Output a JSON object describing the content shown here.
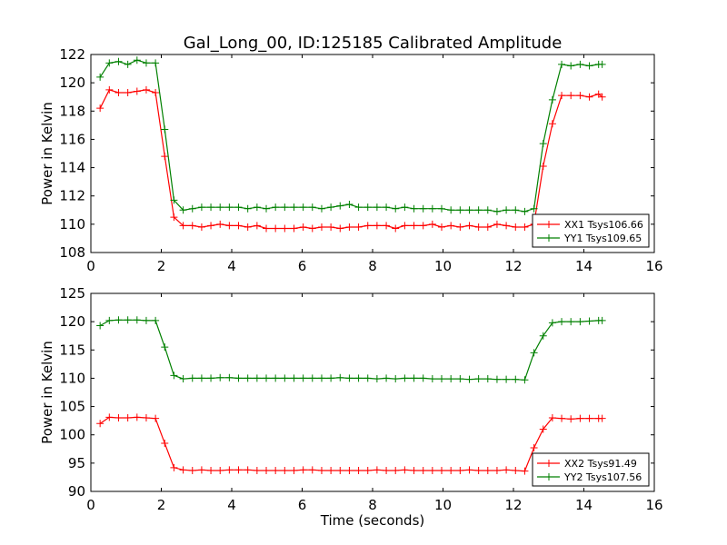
{
  "title": "Gal_Long_00, ID:125185 Calibrated Amplitude",
  "colors": {
    "xx": "#ff0000",
    "yy": "#008000"
  },
  "chart_data": [
    {
      "type": "line",
      "xlabel": "",
      "ylabel": "Power in Kelvin",
      "xlim": [
        0,
        16
      ],
      "ylim": [
        108,
        122
      ],
      "xticks": [
        0,
        2,
        4,
        6,
        8,
        10,
        12,
        14,
        16
      ],
      "yticks": [
        108,
        110,
        112,
        114,
        116,
        118,
        120,
        122
      ],
      "grid": false,
      "legend_position": "lower-right",
      "x": [
        0.262,
        0.524,
        0.786,
        1.049,
        1.311,
        1.573,
        1.835,
        2.097,
        2.359,
        2.621,
        2.884,
        3.146,
        3.408,
        3.67,
        3.932,
        4.194,
        4.456,
        4.719,
        4.981,
        5.243,
        5.505,
        5.767,
        6.029,
        6.291,
        6.554,
        6.816,
        7.078,
        7.34,
        7.602,
        7.864,
        8.126,
        8.389,
        8.651,
        8.913,
        9.175,
        9.437,
        9.699,
        9.961,
        10.224,
        10.486,
        10.748,
        11.01,
        11.272,
        11.534,
        11.796,
        12.059,
        12.321,
        12.583,
        12.845,
        13.107,
        13.369,
        13.631,
        13.894,
        14.156,
        14.418,
        14.52
      ],
      "series": [
        {
          "name": "XX1 Tsys106.66",
          "color": "#ff0000",
          "values": [
            118.2,
            119.5,
            119.3,
            119.3,
            119.4,
            119.5,
            119.3,
            114.8,
            110.5,
            109.9,
            109.9,
            109.8,
            109.9,
            110.0,
            109.9,
            109.9,
            109.8,
            109.9,
            109.7,
            109.7,
            109.7,
            109.7,
            109.8,
            109.7,
            109.8,
            109.8,
            109.7,
            109.8,
            109.8,
            109.9,
            109.9,
            109.9,
            109.7,
            109.9,
            109.9,
            109.9,
            110.0,
            109.8,
            109.9,
            109.8,
            109.9,
            109.8,
            109.8,
            110.0,
            109.9,
            109.8,
            109.8,
            110.0,
            114.1,
            117.1,
            119.1,
            119.1,
            119.1,
            119.0,
            119.2,
            119.0
          ]
        },
        {
          "name": "YY1 Tsys109.65",
          "color": "#008000",
          "values": [
            120.4,
            121.4,
            121.5,
            121.3,
            121.6,
            121.4,
            121.4,
            116.7,
            111.7,
            111.0,
            111.1,
            111.2,
            111.2,
            111.2,
            111.2,
            111.2,
            111.1,
            111.2,
            111.1,
            111.2,
            111.2,
            111.2,
            111.2,
            111.2,
            111.1,
            111.2,
            111.3,
            111.4,
            111.2,
            111.2,
            111.2,
            111.2,
            111.1,
            111.2,
            111.1,
            111.1,
            111.1,
            111.1,
            111.0,
            111.0,
            111.0,
            111.0,
            111.0,
            110.9,
            111.0,
            111.0,
            110.9,
            111.1,
            115.7,
            118.8,
            121.3,
            121.2,
            121.3,
            121.2,
            121.3,
            121.3
          ]
        }
      ]
    },
    {
      "type": "line",
      "xlabel": "Time (seconds)",
      "ylabel": "Power in Kelvin",
      "xlim": [
        0,
        16
      ],
      "ylim": [
        90,
        125
      ],
      "xticks": [
        0,
        2,
        4,
        6,
        8,
        10,
        12,
        14,
        16
      ],
      "yticks": [
        90,
        95,
        100,
        105,
        110,
        115,
        120,
        125
      ],
      "grid": false,
      "legend_position": "lower-right",
      "x": [
        0.262,
        0.524,
        0.786,
        1.049,
        1.311,
        1.573,
        1.835,
        2.097,
        2.359,
        2.621,
        2.884,
        3.146,
        3.408,
        3.67,
        3.932,
        4.194,
        4.456,
        4.719,
        4.981,
        5.243,
        5.505,
        5.767,
        6.029,
        6.291,
        6.554,
        6.816,
        7.078,
        7.34,
        7.602,
        7.864,
        8.126,
        8.389,
        8.651,
        8.913,
        9.175,
        9.437,
        9.699,
        9.961,
        10.224,
        10.486,
        10.748,
        11.01,
        11.272,
        11.534,
        11.796,
        12.059,
        12.321,
        12.583,
        12.845,
        13.107,
        13.369,
        13.631,
        13.894,
        14.156,
        14.418,
        14.52
      ],
      "series": [
        {
          "name": "XX2 Tsys91.49",
          "color": "#ff0000",
          "values": [
            102.0,
            103.1,
            103.0,
            103.0,
            103.1,
            103.0,
            102.9,
            98.5,
            94.2,
            93.8,
            93.7,
            93.8,
            93.7,
            93.7,
            93.8,
            93.8,
            93.8,
            93.7,
            93.7,
            93.7,
            93.7,
            93.7,
            93.8,
            93.8,
            93.7,
            93.7,
            93.7,
            93.7,
            93.7,
            93.7,
            93.8,
            93.7,
            93.7,
            93.8,
            93.7,
            93.7,
            93.7,
            93.7,
            93.7,
            93.7,
            93.8,
            93.7,
            93.7,
            93.7,
            93.8,
            93.7,
            93.6,
            97.7,
            101.0,
            103.0,
            102.9,
            102.8,
            102.9,
            102.9,
            102.9,
            102.9
          ]
        },
        {
          "name": "YY2 Tsys107.56",
          "color": "#008000",
          "values": [
            119.3,
            120.2,
            120.3,
            120.3,
            120.3,
            120.2,
            120.2,
            115.5,
            110.5,
            109.9,
            110.0,
            110.0,
            110.0,
            110.1,
            110.1,
            110.0,
            110.0,
            110.0,
            110.0,
            110.0,
            110.0,
            110.0,
            110.0,
            110.0,
            110.0,
            110.0,
            110.1,
            110.0,
            110.0,
            110.0,
            109.9,
            110.0,
            109.9,
            110.0,
            110.0,
            110.0,
            109.9,
            109.9,
            109.9,
            109.9,
            109.8,
            109.9,
            109.9,
            109.8,
            109.8,
            109.8,
            109.7,
            114.5,
            117.5,
            119.8,
            120.0,
            120.0,
            120.0,
            120.1,
            120.2,
            120.2
          ]
        }
      ]
    }
  ]
}
